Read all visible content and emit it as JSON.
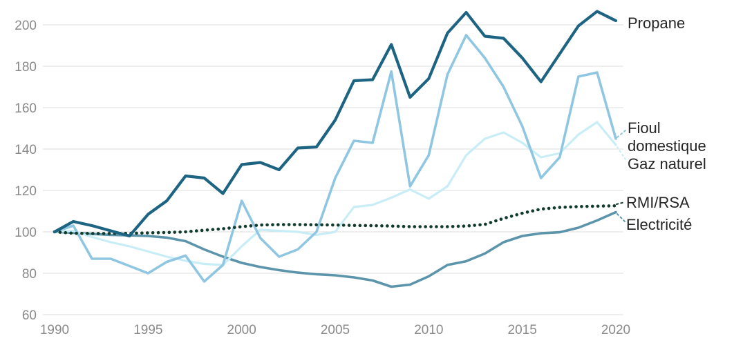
{
  "chart_data": {
    "type": "line",
    "title": "",
    "xlabel": "",
    "ylabel": "",
    "x": [
      1990,
      1991,
      1992,
      1993,
      1994,
      1995,
      1996,
      1997,
      1998,
      1999,
      2000,
      2001,
      2002,
      2003,
      2004,
      2005,
      2006,
      2007,
      2008,
      2009,
      2010,
      2011,
      2012,
      2013,
      2014,
      2015,
      2016,
      2017,
      2018,
      2019,
      2020
    ],
    "x_ticks": [
      1990,
      1995,
      2000,
      2005,
      2010,
      2015,
      2020
    ],
    "y_ticks": [
      60,
      80,
      100,
      120,
      140,
      160,
      180,
      200
    ],
    "ylim": [
      60,
      210
    ],
    "grid": "horizontal",
    "legend_position": "right-end-labels",
    "series": [
      {
        "name": "Electricité",
        "end_label_lines": [
          "Electricité"
        ],
        "color": "#5c95ab",
        "style": "solid",
        "values": [
          100,
          99.5,
          99,
          98.5,
          98.3,
          98,
          97.2,
          95.5,
          91.5,
          88,
          85,
          83,
          81.5,
          80.3,
          79.5,
          79,
          78,
          76.5,
          73.5,
          74.5,
          78.5,
          84,
          85.8,
          89.5,
          95,
          98,
          99.3,
          99.8,
          102,
          105.5,
          109.5
        ]
      },
      {
        "name": "Gaz naturel",
        "end_label_lines": [
          "Gaz naturel"
        ],
        "color": "#c8edf6",
        "style": "solid",
        "values": [
          100,
          100.5,
          97.5,
          95,
          93,
          90.5,
          88,
          86,
          84.5,
          84,
          93,
          101,
          100.5,
          100,
          98.5,
          100,
          112,
          113,
          116.5,
          120.5,
          116,
          122,
          137,
          145,
          148,
          143,
          136,
          138,
          147,
          153,
          142
        ]
      },
      {
        "name": "Fioul domestique",
        "end_label_lines": [
          "Fioul",
          "domestique"
        ],
        "color": "#8fc6e2",
        "style": "solid",
        "values": [
          100,
          103,
          87,
          87,
          83.5,
          80,
          85.5,
          88.5,
          76,
          84,
          115,
          97,
          88,
          91.5,
          100,
          126,
          144,
          143,
          177.5,
          122,
          137,
          176,
          195,
          184,
          170,
          151,
          126,
          136,
          175,
          177,
          145
        ]
      },
      {
        "name": "RMI/RSA",
        "end_label_lines": [
          "RMI/RSA"
        ],
        "color": "#123b2d",
        "style": "dotted",
        "values": [
          100,
          99.3,
          99.2,
          99.2,
          99.3,
          99.5,
          99.7,
          100,
          100.8,
          101.5,
          102.5,
          103.3,
          103.5,
          103.5,
          103.4,
          103.3,
          103.1,
          103,
          102.8,
          102.5,
          102.5,
          102.5,
          102.8,
          103.6,
          106.5,
          109,
          111,
          111.8,
          112.2,
          112.4,
          112.6
        ]
      },
      {
        "name": "Propane",
        "end_label_lines": [
          "Propane"
        ],
        "color": "#1d6483",
        "style": "solid",
        "values": [
          100,
          105,
          103,
          100.5,
          98,
          108.5,
          115,
          127,
          126,
          118.5,
          132.5,
          133.5,
          130,
          140.5,
          141,
          154,
          173,
          173.5,
          190.5,
          165,
          174,
          196,
          206,
          194.5,
          193.5,
          184,
          172.5,
          186,
          199.5,
          206.5,
          202
        ]
      }
    ],
    "colors": {
      "grid": "#dddddd",
      "tick_text": "#8a8a8a",
      "label_text": "#262626",
      "background": "#ffffff"
    }
  }
}
